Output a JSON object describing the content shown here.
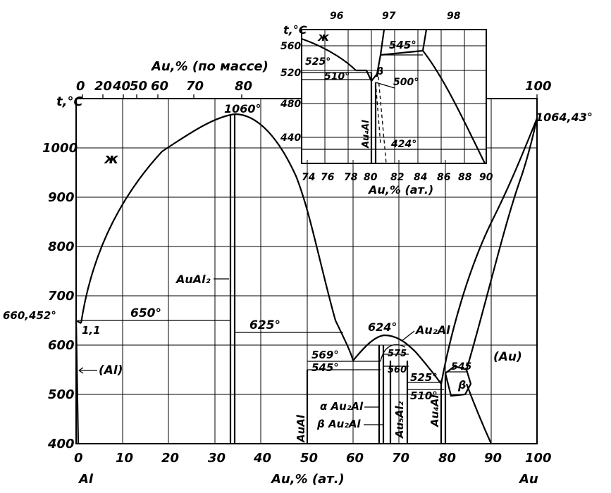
{
  "main": {
    "y_axis_title": "t,°C",
    "x_axis_title": "Au,% (ат.)",
    "top_axis_title": "Au,% (по массе)",
    "left_element": "Al",
    "right_element": "Au",
    "x_ticks": [
      "0",
      "10",
      "20",
      "30",
      "40",
      "50",
      "60",
      "70",
      "80",
      "90",
      "100"
    ],
    "y_ticks": [
      "400",
      "500",
      "600",
      "700",
      "800",
      "900",
      "1000"
    ],
    "top_ticks": [
      "0",
      "20",
      "40",
      "50",
      "60",
      "70",
      "80",
      "100"
    ]
  },
  "labels": {
    "liquid": "ж",
    "al_phase": "(Al)",
    "au_phase": "(Au)",
    "auAl2": "AuAl₂",
    "auAl": "AuAl",
    "alpha_au2al": "α Au₂Al",
    "beta_au2al": "β Au₂Al",
    "au5al2": "Au₅Al₂",
    "au2al": "Au₂Al",
    "au4al": "Au₄Al",
    "beta": "β"
  },
  "temps": {
    "t660": "660,452°",
    "t1_1": "1,1",
    "t650": "650°",
    "t1060": "1060°",
    "t625": "625°",
    "t624": "624°",
    "t569": "569°",
    "t545": "545°",
    "t575": "575",
    "t560": "560",
    "t525": "525°",
    "t510": "510°",
    "t545b": "545",
    "t1064": "1064,43°"
  },
  "inset": {
    "y_title": "t,°C",
    "x_title": "Au,% (ат.)",
    "x_ticks": [
      "74",
      "76",
      "78",
      "80",
      "82",
      "84",
      "86",
      "88",
      "90"
    ],
    "y_ticks": [
      "440",
      "480",
      "520",
      "560"
    ],
    "top_ticks": [
      "96",
      "97",
      "98"
    ],
    "liquid": "ж",
    "t525": "525°",
    "t510": "510°",
    "t545": "545°",
    "t500": "500°",
    "t424": "424°",
    "beta": "β",
    "au4al": "Au₄Al"
  },
  "chart_data": {
    "type": "phase_diagram",
    "system": "Al-Au",
    "x_unit": "Au, at.%",
    "y_unit": "t, °C",
    "xlim": [
      0,
      100
    ],
    "ylim": [
      400,
      1100
    ],
    "key_points": [
      {
        "name": "Al melting",
        "x": 0,
        "y": 660.452
      },
      {
        "name": "Al-AuAl2 eutectic",
        "x": 1.1,
        "y": 650
      },
      {
        "name": "AuAl2 congruent melting",
        "x": 33.3,
        "y": 1060
      },
      {
        "name": "peritectic",
        "x": 50,
        "y": 625
      },
      {
        "name": "AuAl eutectic",
        "x": 60,
        "y": 569
      },
      {
        "name": "Au2Al maximum",
        "x": 67,
        "y": 624
      },
      {
        "name": "Au melting",
        "x": 100,
        "y": 1064.43
      }
    ],
    "isotherms": [
      650,
      625,
      569,
      545,
      575,
      560,
      525,
      510,
      545
    ],
    "phases": [
      "ж",
      "(Al)",
      "AuAl2",
      "AuAl",
      "αAu2Al",
      "βAu2Al",
      "Au5Al2",
      "Au4Al",
      "β",
      "(Au)"
    ]
  }
}
